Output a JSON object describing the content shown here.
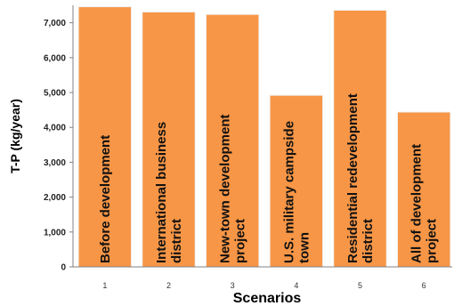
{
  "chart_data": {
    "type": "bar",
    "categories": [
      "1",
      "2",
      "3",
      "4",
      "5",
      "6"
    ],
    "values": [
      7460,
      7310,
      7240,
      4920,
      7360,
      4440
    ],
    "bar_labels": [
      [
        "Before development"
      ],
      [
        "International business",
        "district"
      ],
      [
        "New-town development",
        "project"
      ],
      [
        "U.S. military campside",
        "town"
      ],
      [
        "Residential redevelopment",
        "district"
      ],
      [
        "All of development",
        "project"
      ]
    ],
    "xlabel": "Scenarios",
    "ylabel": "T-P (kg/year)",
    "ylim": [
      0,
      7500
    ],
    "yticks": [
      0,
      1000,
      2000,
      3000,
      4000,
      5000,
      6000,
      7000
    ],
    "ytick_labels": [
      "0",
      "1,000",
      "2,000",
      "3,000",
      "4,000",
      "5,000",
      "6,000",
      "7,000"
    ],
    "grid": false,
    "legend": "none",
    "bar_color": "#F79646",
    "bar_edge_color": "#F2F2F2",
    "axis_color": "#808080"
  }
}
